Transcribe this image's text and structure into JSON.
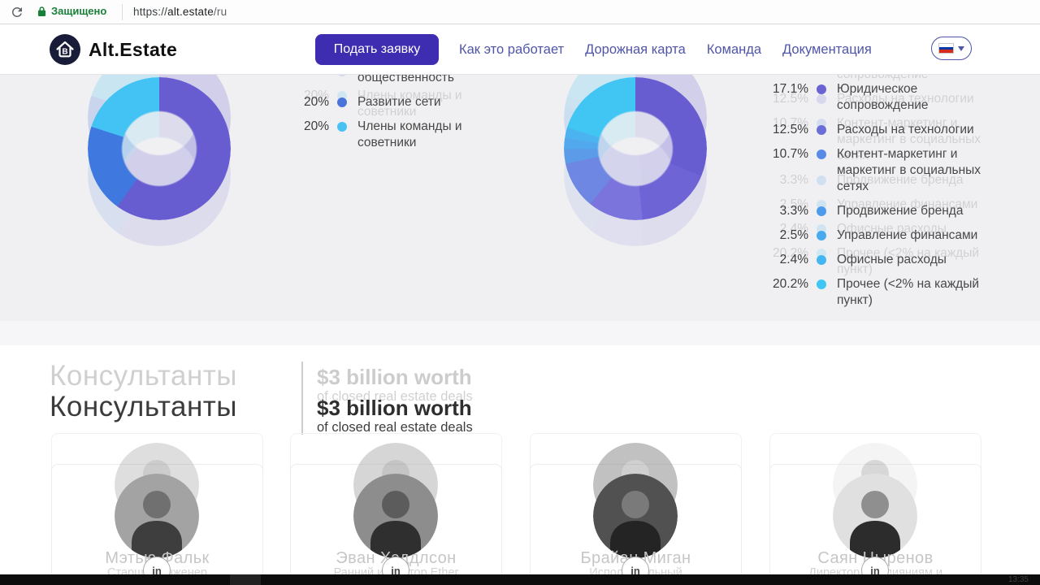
{
  "browser": {
    "secure_label": "Защищено",
    "url_scheme": "https://",
    "url_host": "alt.estate",
    "url_path": "/ru"
  },
  "navbar": {
    "brand": "Alt.Estate",
    "cta_label": "Подать заявку",
    "links": [
      {
        "label": "Как это работает"
      },
      {
        "label": "Дорожная карта"
      },
      {
        "label": "Команда"
      },
      {
        "label": "Документация"
      }
    ],
    "language": {
      "flag": "ru",
      "flag_colors": [
        "#ffffff",
        "#0039a6",
        "#d52b1e"
      ]
    }
  },
  "chart_data": [
    {
      "type": "pie",
      "variant": "donut",
      "position": "left",
      "note": "token distribution donut; first legend row is cut off by the navbar, only its second line is visible",
      "segments": [
        {
          "value": 60,
          "color": "#675dd1",
          "label": ""
        },
        {
          "value": 20,
          "color": "#3f78de",
          "label": "Развитие сети"
        },
        {
          "value": 20,
          "color": "#43c3f3",
          "label": "Члены команды и советники"
        }
      ],
      "legend": [
        {
          "pct": "",
          "dot": "",
          "lines": [
            "общественность"
          ],
          "cut_off": true
        },
        {
          "pct": "20%",
          "dot": "#4b74da",
          "lines": [
            "Развитие сети"
          ]
        },
        {
          "pct": "20%",
          "dot": "#47c2f3",
          "lines": [
            "Члены команды и",
            "советники"
          ]
        }
      ]
    },
    {
      "type": "pie",
      "variant": "donut",
      "position": "right",
      "note": "budget allocation donut; largest segment (~31.3%) has its legend row scrolled out of view",
      "segments": [
        {
          "value": 31.3,
          "color": "#675dd1",
          "label": ""
        },
        {
          "value": 17.1,
          "color": "#6e64d6",
          "label": "Юридическое сопровождение"
        },
        {
          "value": 12.5,
          "color": "#7a74dc",
          "label": "Расходы на технологии"
        },
        {
          "value": 10.7,
          "color": "#6e87e2",
          "label": "Контент-маркетинг и маркетинг в социальных сетях"
        },
        {
          "value": 3.3,
          "color": "#5b9be8",
          "label": "Продвижение бренда"
        },
        {
          "value": 2.5,
          "color": "#52a8ec",
          "label": "Управление финансами"
        },
        {
          "value": 2.4,
          "color": "#4bb4f0",
          "label": "Офисные расходы"
        },
        {
          "value": 20.2,
          "color": "#41c6f4",
          "label": "Прочее (<2% на каждый пункт)"
        }
      ],
      "legend": [
        {
          "pct": "17.1%",
          "dot": "#6b63d3",
          "lines": [
            "Юридическое",
            "сопровождение"
          ]
        },
        {
          "pct": "12.5%",
          "dot": "#6a6fd8",
          "lines": [
            "Расходы на технологии"
          ]
        },
        {
          "pct": "10.7%",
          "dot": "#5a8ae8",
          "lines": [
            "Контент-маркетинг и",
            "маркетинг в социальных",
            "сетях"
          ]
        },
        {
          "pct": "3.3%",
          "dot": "#4c9ceb",
          "lines": [
            "Продвижение бренда"
          ]
        },
        {
          "pct": "2.5%",
          "dot": "#47aaef",
          "lines": [
            "Управление финансами"
          ]
        },
        {
          "pct": "2.4%",
          "dot": "#44b6f1",
          "lines": [
            "Офисные расходы"
          ]
        },
        {
          "pct": "20.2%",
          "dot": "#3fc6f5",
          "lines": [
            "Прочее (<2% на каждый",
            "пункт)"
          ]
        }
      ]
    }
  ],
  "consultants": {
    "heading": "Консультанты",
    "highlight_title": "$3 billion worth",
    "highlight_subtitle": "of closed real estate deals",
    "linkedin_label": "in",
    "members": [
      {
        "name": "Мэтью Фальк",
        "role": "Старший инженер",
        "photo": {
          "bg": "#a3a3a3",
          "head": "#707070",
          "body": "#3e3e3e"
        }
      },
      {
        "name": "Эван Хэддлсон",
        "role": "Ранний инвестор Ether",
        "photo": {
          "bg": "#8d8d8d",
          "head": "#5c5c5c",
          "body": "#2f2f2f"
        }
      },
      {
        "name": "Брайан Миган",
        "role": "Исполнительный",
        "photo": {
          "bg": "#515151",
          "head": "#7a7a7a",
          "body": "#242424"
        }
      },
      {
        "name": "Саян Цыренов",
        "role": "Директор по слияниям и",
        "photo": {
          "bg": "#e0e0e0",
          "head": "#8f8f8f",
          "body": "#2c2c2c"
        }
      }
    ]
  },
  "player_bar": {
    "timestamp": "13:35"
  },
  "colors": {
    "accent_purple": "#3e2cb1",
    "nav_link": "#4f55a7",
    "secure_green": "#188038",
    "section_bg": "#f0f0f2"
  }
}
